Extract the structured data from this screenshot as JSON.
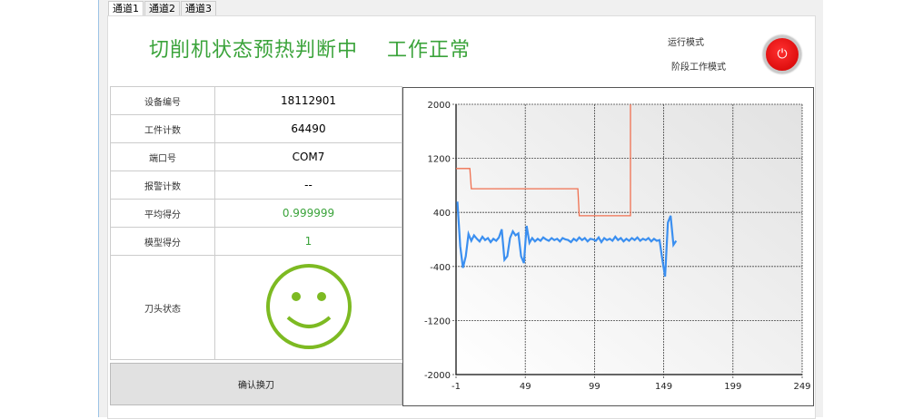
{
  "tabs": [
    "通道1",
    "通道2",
    "通道3"
  ],
  "header": {
    "status_title": "切削机状态预热判断中    工作正常",
    "run_mode_label": "运行模式",
    "run_mode_value": "阶段工作模式",
    "power_icon": "power-icon",
    "power_color": "#e00000"
  },
  "info_table": [
    {
      "label": "设备编号",
      "value": "18112901"
    },
    {
      "label": "工件计数",
      "value": "64490"
    },
    {
      "label": "端口号",
      "value": "COM7"
    },
    {
      "label": "报警计数",
      "value": "--"
    },
    {
      "label": "平均得分",
      "value": "0.999999"
    },
    {
      "label": "模型得分",
      "value": "1"
    },
    {
      "label": "刀头状态",
      "value": ""
    }
  ],
  "tool_status_icon": "smiley-face-icon",
  "tool_status_color": "#7dba22",
  "confirm_button": "确认换刀",
  "chart_data": {
    "type": "line",
    "xlim": [
      -1,
      249
    ],
    "ylim": [
      -2000,
      2000
    ],
    "xticks": [
      "-1",
      "49",
      "99",
      "149",
      "199",
      "249"
    ],
    "yticks": [
      "2000",
      "1200",
      "400",
      "-400",
      "-1200",
      "-2000"
    ],
    "grid": true,
    "series": [
      {
        "color": "#f07050",
        "x": [
          -1,
          9,
          10,
          87,
          88,
          125,
          125
        ],
        "y": [
          1050,
          1050,
          750,
          750,
          350,
          350,
          2000
        ]
      },
      {
        "color": "#3b8ff0",
        "x_start": 0,
        "x_step": 2,
        "y": [
          560,
          -100,
          -420,
          -250,
          80,
          -20,
          60,
          10,
          -30,
          40,
          -10,
          20,
          -40,
          10,
          -20,
          30,
          150,
          -300,
          -250,
          20,
          120,
          60,
          90,
          -250,
          -350,
          200,
          -50,
          20,
          -30,
          10,
          -20,
          30,
          0,
          -20,
          20,
          -10,
          10,
          -30,
          20,
          0,
          -10,
          -40,
          10,
          -20,
          30,
          -10,
          20,
          -30,
          10,
          0,
          -20,
          30,
          -40,
          20,
          -10,
          10,
          -20,
          40,
          -10,
          20,
          -30,
          10,
          -20,
          20,
          -10,
          30,
          -20,
          10,
          -10,
          20,
          -30,
          10,
          -20,
          -10,
          -300,
          -550,
          250,
          350,
          -80,
          -20
        ]
      }
    ]
  }
}
